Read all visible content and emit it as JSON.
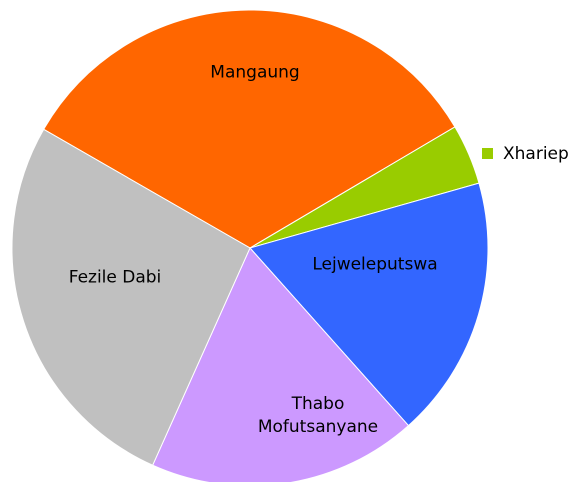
{
  "chart_data": {
    "type": "pie",
    "categories": [
      "Mangaung",
      "Xhariep",
      "Lejweleputswa",
      "Thabo Mofutsanyane",
      "Fezile Dabi"
    ],
    "values": [
      33.2,
      4.1,
      17.8,
      18.3,
      26.6
    ],
    "colors": [
      "#ff6600",
      "#99cc00",
      "#3366ff",
      "#cc99ff",
      "#c0c0c0"
    ]
  }
}
